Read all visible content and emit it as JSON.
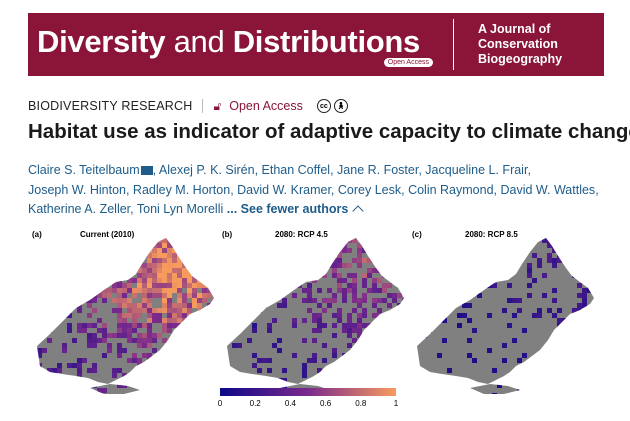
{
  "banner": {
    "title_bold1": "Diversity",
    "title_thin": " and ",
    "title_bold2": "Distributions",
    "open_access_badge": "Open Access",
    "tagline": "A Journal of\nConservation\nBiogeography",
    "color": "#8a1538"
  },
  "article": {
    "type": "BIODIVERSITY RESEARCH",
    "open_access": "Open Access",
    "title": "Habitat use as indicator of adaptive capacity to climate change",
    "authors": [
      "Claire S. Teitelbaum",
      "Alexej P. K. Sirén",
      "Ethan Coffel",
      "Jane R. Foster",
      "Jacqueline L. Frair",
      "Joseph W. Hinton",
      "Radley M. Horton",
      "David W. Kramer",
      "Corey Lesk",
      "Colin Raymond",
      "David W. Wattles",
      "Katherine A. Zeller",
      "Toni Lyn Morelli"
    ],
    "ellipsis": "...",
    "see_fewer": "See fewer authors"
  },
  "figure": {
    "panels": [
      {
        "label": "(a)",
        "title": "Current (2010)",
        "intensity": 1.0
      },
      {
        "label": "(b)",
        "title": "2080: RCP 4.5",
        "intensity": 0.6
      },
      {
        "label": "(c)",
        "title": "2080: RCP 8.5",
        "intensity": 0.25
      }
    ],
    "colorbar_ticks": [
      "0",
      "0.2",
      "0.4",
      "0.6",
      "0.8",
      "1"
    ],
    "colors": {
      "land": "#808080",
      "low": "#0d0887",
      "mid": "#7b2a8c",
      "high": "#f79b5d"
    }
  }
}
